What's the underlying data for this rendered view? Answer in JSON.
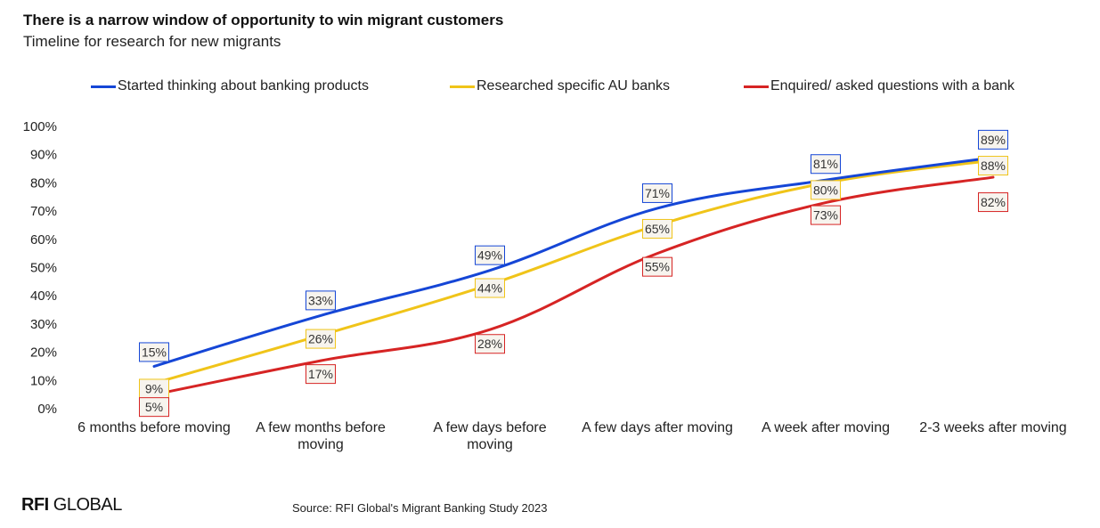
{
  "header": {
    "title": "There is a narrow window of opportunity to win migrant customers",
    "subtitle": "Timeline for research for new migrants"
  },
  "footer": {
    "logo_bold": "RFI",
    "logo_rest": " GLOBAL",
    "source": "Source: RFI Global's Migrant Banking Study 2023"
  },
  "chart_data": {
    "type": "line",
    "categories": [
      [
        "6 months before moving"
      ],
      [
        "A few months before",
        "moving"
      ],
      [
        "A few days before",
        "moving"
      ],
      [
        "A few days after moving"
      ],
      [
        "A week after moving"
      ],
      [
        "2-3 weeks after moving"
      ]
    ],
    "y_ticks": [
      "0%",
      "10%",
      "20%",
      "30%",
      "40%",
      "50%",
      "60%",
      "70%",
      "80%",
      "90%",
      "100%"
    ],
    "ylim": [
      0,
      100
    ],
    "legend_position": "top",
    "series": [
      {
        "name": "Started thinking about banking products",
        "color": "#1546d6",
        "values": [
          15,
          33,
          49,
          71,
          81,
          89
        ],
        "labels": [
          "15%",
          "33%",
          "49%",
          "71%",
          "81%",
          "89%"
        ]
      },
      {
        "name": "Researched specific AU banks",
        "color": "#f0c419",
        "values": [
          9,
          26,
          44,
          65,
          80,
          88
        ],
        "labels": [
          "9%",
          "26%",
          "44%",
          "65%",
          "80%",
          "88%"
        ]
      },
      {
        "name": "Enquired/ asked questions with a bank",
        "color": "#d62424",
        "values": [
          5,
          17,
          28,
          55,
          73,
          82
        ],
        "labels": [
          "5%",
          "17%",
          "28%",
          "55%",
          "73%",
          "82%"
        ]
      }
    ]
  }
}
